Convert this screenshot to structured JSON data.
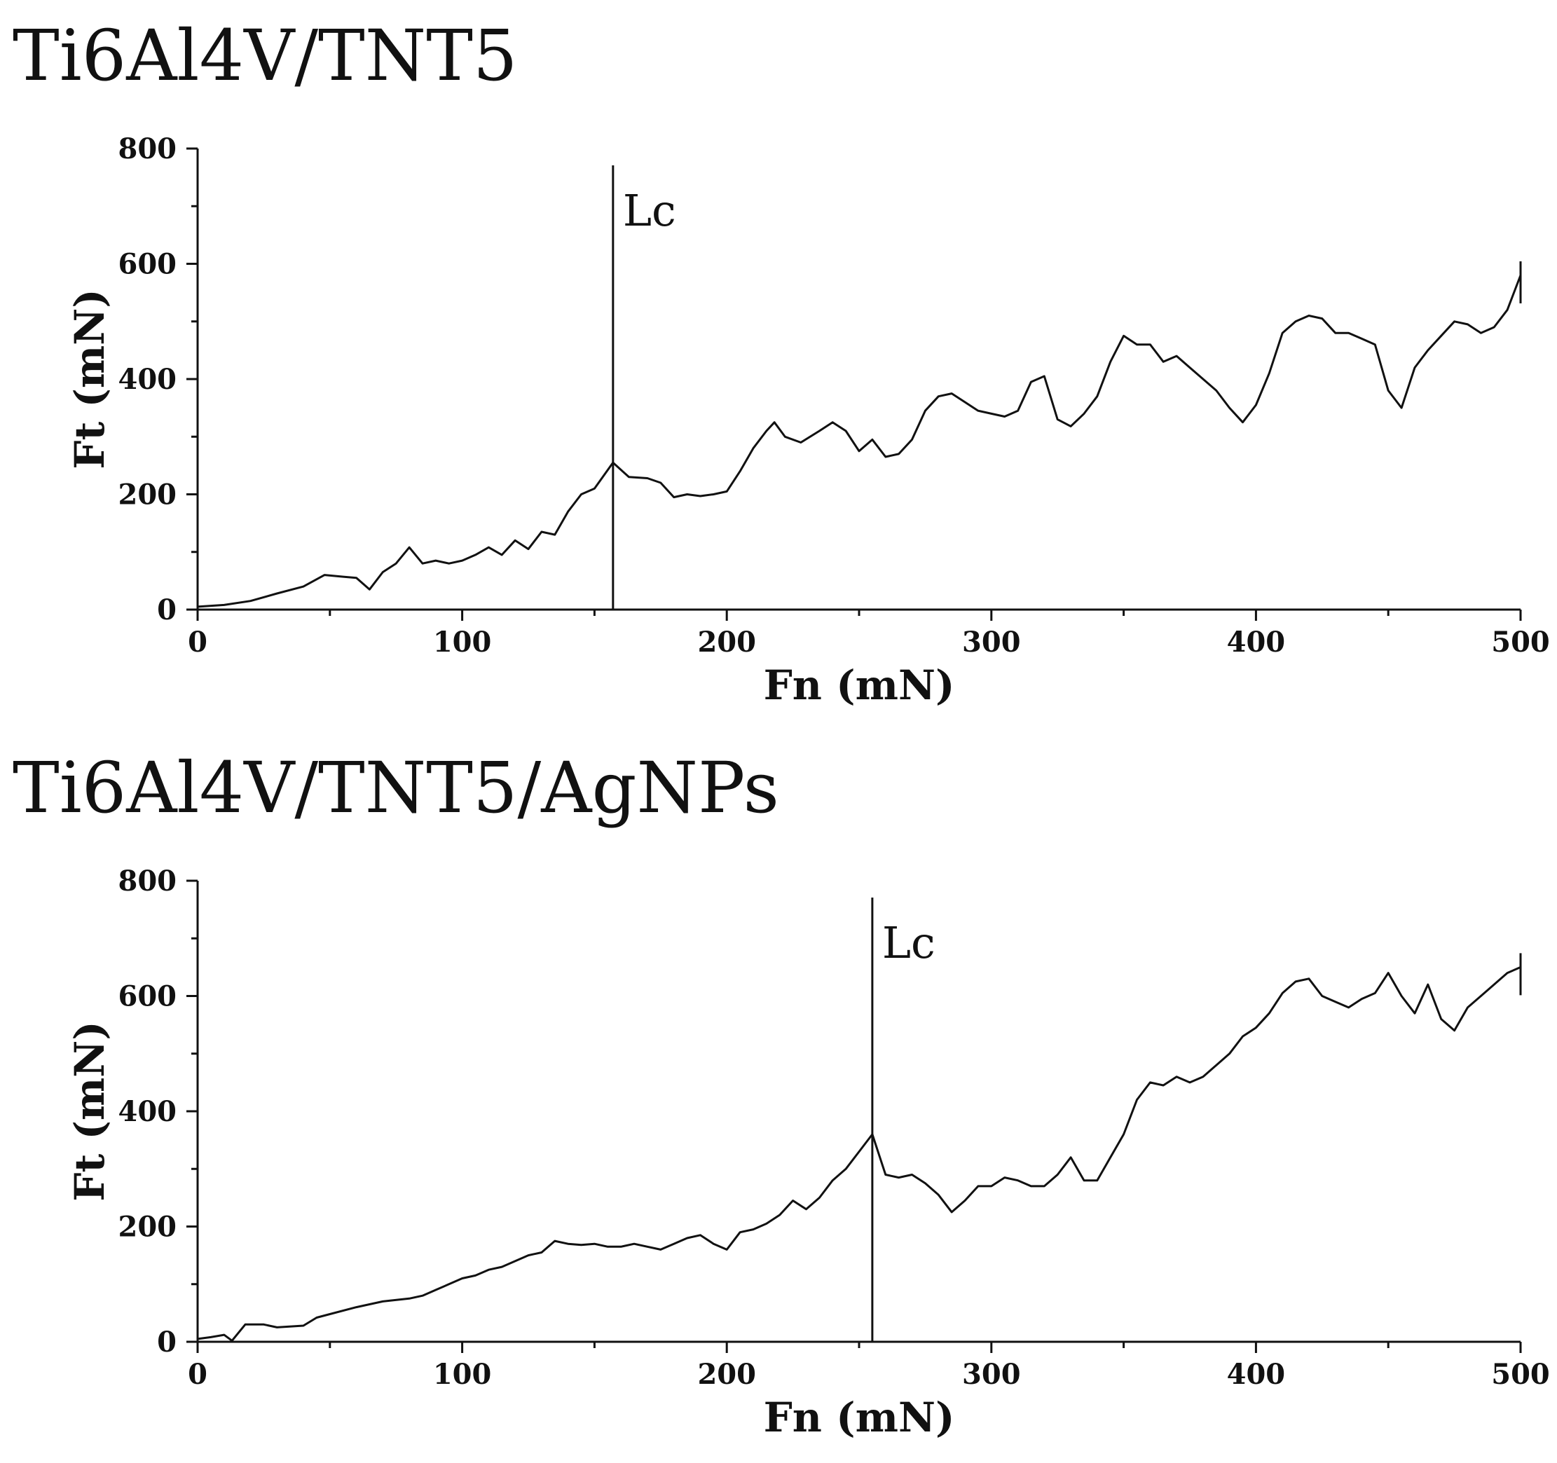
{
  "chart_data": [
    {
      "type": "line",
      "title": "Ti6Al4V/TNT5",
      "xlabel": "Fn (mN)",
      "ylabel": "Ft (mN)",
      "xlim": [
        0,
        500
      ],
      "ylim": [
        0,
        800
      ],
      "xticks": [
        0,
        100,
        200,
        300,
        400,
        500
      ],
      "yticks": [
        0,
        200,
        400,
        600,
        800
      ],
      "marker": {
        "label": "Lc",
        "x": 157
      },
      "series": [
        {
          "x": [
            0,
            10,
            20,
            30,
            40,
            48,
            55,
            60,
            65,
            70,
            75,
            80,
            85,
            90,
            95,
            100,
            105,
            110,
            115,
            120,
            125,
            130,
            135,
            140,
            145,
            150,
            157,
            163,
            170,
            175,
            180,
            185,
            190,
            195,
            200,
            205,
            210,
            215,
            218,
            222,
            228,
            235,
            240,
            245,
            250,
            255,
            260,
            265,
            270,
            275,
            280,
            285,
            290,
            295,
            300,
            305,
            310,
            315,
            320,
            325,
            330,
            335,
            340,
            345,
            350,
            355,
            360,
            365,
            370,
            375,
            380,
            385,
            390,
            395,
            400,
            405,
            410,
            415,
            420,
            425,
            430,
            435,
            440,
            445,
            450,
            455,
            460,
            465,
            470,
            475,
            480,
            485,
            490,
            495,
            500
          ],
          "y": [
            5,
            8,
            15,
            28,
            40,
            60,
            57,
            55,
            35,
            65,
            80,
            108,
            80,
            85,
            80,
            85,
            95,
            108,
            95,
            120,
            105,
            135,
            130,
            170,
            200,
            210,
            255,
            230,
            228,
            220,
            195,
            200,
            197,
            200,
            205,
            240,
            280,
            310,
            325,
            300,
            290,
            310,
            325,
            310,
            275,
            295,
            265,
            270,
            295,
            345,
            370,
            375,
            360,
            345,
            340,
            335,
            345,
            395,
            405,
            330,
            318,
            340,
            370,
            430,
            475,
            460,
            460,
            430,
            440,
            420,
            400,
            380,
            350,
            325,
            355,
            410,
            480,
            500,
            510,
            505,
            480,
            480,
            470,
            460,
            380,
            350,
            420,
            450,
            475,
            500,
            495,
            480,
            490,
            520,
            580
          ]
        }
      ]
    },
    {
      "type": "line",
      "title": "Ti6Al4V/TNT5/AgNPs",
      "xlabel": "Fn (mN)",
      "ylabel": "Ft (mN)",
      "xlim": [
        0,
        500
      ],
      "ylim": [
        0,
        800
      ],
      "xticks": [
        0,
        100,
        200,
        300,
        400,
        500
      ],
      "yticks": [
        0,
        200,
        400,
        600,
        800
      ],
      "marker": {
        "label": "Lc",
        "x": 255
      },
      "series": [
        {
          "x": [
            0,
            5,
            10,
            13,
            18,
            25,
            30,
            40,
            45,
            50,
            60,
            65,
            70,
            80,
            85,
            90,
            95,
            100,
            105,
            110,
            115,
            120,
            125,
            130,
            135,
            140,
            145,
            150,
            155,
            160,
            165,
            170,
            175,
            180,
            185,
            190,
            195,
            200,
            205,
            210,
            215,
            220,
            225,
            230,
            235,
            240,
            245,
            250,
            255,
            260,
            265,
            270,
            275,
            280,
            285,
            290,
            295,
            300,
            305,
            310,
            315,
            320,
            325,
            330,
            335,
            340,
            345,
            350,
            355,
            360,
            365,
            370,
            375,
            380,
            385,
            390,
            395,
            400,
            405,
            410,
            415,
            420,
            425,
            430,
            435,
            440,
            445,
            450,
            455,
            460,
            465,
            470,
            475,
            480,
            485,
            490,
            495,
            500
          ],
          "y": [
            5,
            8,
            12,
            2,
            30,
            30,
            25,
            28,
            42,
            48,
            60,
            65,
            70,
            75,
            80,
            90,
            100,
            110,
            115,
            125,
            130,
            140,
            150,
            155,
            175,
            170,
            168,
            170,
            165,
            165,
            170,
            165,
            160,
            170,
            180,
            185,
            170,
            160,
            190,
            195,
            205,
            220,
            245,
            230,
            250,
            280,
            300,
            330,
            360,
            290,
            285,
            290,
            275,
            255,
            225,
            245,
            270,
            270,
            285,
            280,
            270,
            270,
            290,
            320,
            280,
            280,
            320,
            360,
            420,
            450,
            445,
            460,
            450,
            460,
            480,
            500,
            530,
            545,
            570,
            605,
            625,
            630,
            600,
            590,
            580,
            595,
            605,
            640,
            600,
            570,
            620,
            560,
            540,
            580,
            600,
            620,
            640,
            650
          ]
        }
      ]
    }
  ]
}
